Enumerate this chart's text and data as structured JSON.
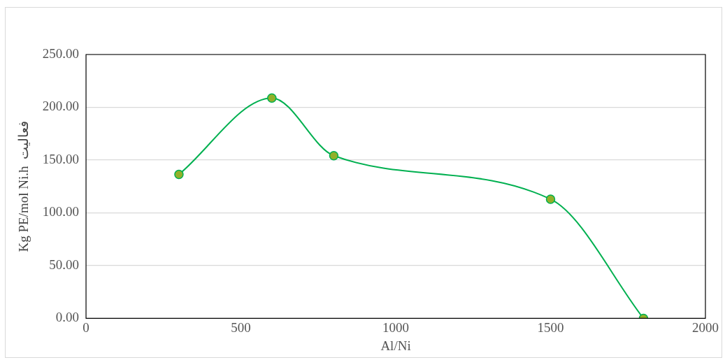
{
  "chart_data": {
    "type": "line",
    "xlabel": "Al/Ni",
    "ylabel": "Kg PE/mol Ni.h  فعالیت",
    "x": [
      300,
      600,
      800,
      1500,
      1800
    ],
    "series": [
      {
        "color": "#00b050",
        "values": [
          136.4,
          208.8,
          154.1,
          112.9,
          0
        ]
      }
    ],
    "xlim": [
      0,
      2000
    ],
    "xticks": [
      0,
      500,
      1000,
      1500,
      2000
    ],
    "ylim": [
      0,
      250
    ],
    "yticks": [
      {
        "value": 0,
        "label": "0.00"
      },
      {
        "value": 50,
        "label": "50.00"
      },
      {
        "value": 100,
        "label": "100.00"
      },
      {
        "value": 150,
        "label": "150.00"
      },
      {
        "value": 200,
        "label": "200.00"
      },
      {
        "value": 250,
        "label": "250.00"
      }
    ],
    "grid": "y",
    "legend": false,
    "marker": "circle",
    "line_style": "solid"
  }
}
